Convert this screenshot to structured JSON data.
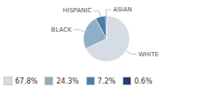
{
  "chart_data": {
    "type": "pie",
    "categories": [
      "WHITE",
      "BLACK",
      "HISPANIC",
      "ASIAN"
    ],
    "values": [
      67.8,
      24.3,
      7.2,
      0.6
    ],
    "colors": [
      "#d6dce4",
      "#8fafc4",
      "#4a7da8",
      "#1f3d6e"
    ],
    "value_labels": [
      "67.8%",
      "24.3%",
      "7.2%",
      "0.6%"
    ],
    "legend": "lower left"
  }
}
